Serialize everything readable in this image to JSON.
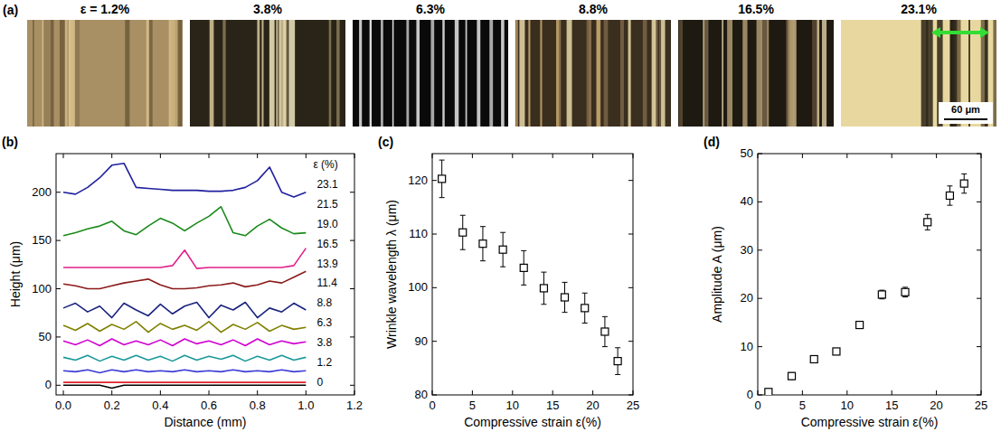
{
  "panel_a": {
    "panel": "(a)",
    "images": [
      {
        "label": "ε = 1.2%"
      },
      {
        "label": "3.8%"
      },
      {
        "label": "6.3%"
      },
      {
        "label": "8.8%"
      },
      {
        "label": "16.5%"
      },
      {
        "label": "23.1%"
      }
    ],
    "scale_bar": "60 μm"
  },
  "chart_data": [
    {
      "type": "line",
      "panel": "(b)",
      "xlabel": "Distance (mm)",
      "ylabel": "Height (μm)",
      "legend_title": "ε (%)",
      "legend": "right",
      "x": [
        0,
        0.05,
        0.1,
        0.15,
        0.2,
        0.25,
        0.3,
        0.35,
        0.4,
        0.45,
        0.5,
        0.55,
        0.6,
        0.65,
        0.7,
        0.75,
        0.8,
        0.85,
        0.9,
        0.95,
        1.0
      ],
      "xlim": [
        -0.03,
        1.2
      ],
      "xticks": [
        {
          "value": 0,
          "label": "0.0"
        },
        {
          "value": 0.2,
          "label": "0.2"
        },
        {
          "value": 0.4,
          "label": "0.4"
        },
        {
          "value": 0.6,
          "label": "0.6"
        },
        {
          "value": 0.8,
          "label": "0.8"
        },
        {
          "value": 1.0,
          "label": "1.0"
        },
        {
          "value": 1.2,
          "label": "1.2"
        }
      ],
      "ylim": [
        -10,
        240
      ],
      "yticks": [
        0,
        50,
        100,
        150,
        200
      ],
      "series": [
        {
          "name": "23.1",
          "color": "#1f1f9f",
          "values": [
            200,
            198,
            205,
            215,
            228,
            230,
            205,
            204,
            203,
            202,
            202,
            202,
            201,
            201,
            202,
            205,
            212,
            226,
            200,
            195,
            200
          ]
        },
        {
          "name": "21.5",
          "color": "#1a8a1a",
          "values": [
            155,
            158,
            162,
            165,
            170,
            160,
            156,
            165,
            173,
            168,
            160,
            168,
            175,
            185,
            158,
            155,
            165,
            172,
            163,
            157,
            158
          ]
        },
        {
          "name": "19.0",
          "color": "#e0208a",
          "values": [
            122,
            122,
            122,
            122,
            122,
            122,
            122,
            122,
            122,
            124,
            140,
            121,
            122,
            122,
            122,
            122,
            122,
            122,
            122,
            124,
            142
          ]
        },
        {
          "name": "16.5",
          "color": "#8b1a1a",
          "values": [
            105,
            103,
            100,
            100,
            103,
            106,
            108,
            110,
            104,
            100,
            100,
            101,
            103,
            104,
            106,
            102,
            104,
            108,
            106,
            112,
            118
          ]
        },
        {
          "name": "13.9",
          "color": "#1a237e",
          "values": [
            80,
            85,
            76,
            82,
            70,
            85,
            78,
            72,
            84,
            74,
            82,
            86,
            70,
            83,
            78,
            86,
            70,
            80,
            76,
            85,
            78
          ]
        },
        {
          "name": "11.4",
          "color": "#808000",
          "values": [
            62,
            57,
            64,
            56,
            63,
            58,
            66,
            55,
            64,
            58,
            62,
            57,
            66,
            55,
            63,
            58,
            65,
            56,
            62,
            58,
            60
          ]
        },
        {
          "name": "8.8",
          "color": "#d000d0",
          "values": [
            46,
            42,
            47,
            41,
            48,
            42,
            46,
            42,
            47,
            41,
            48,
            43,
            46,
            42,
            47,
            41,
            48,
            42,
            46,
            43,
            45
          ]
        },
        {
          "name": "6.3",
          "color": "#1a9999",
          "values": [
            29,
            26,
            31,
            25,
            30,
            26,
            31,
            26,
            30,
            25,
            31,
            26,
            30,
            27,
            31,
            25,
            30,
            26,
            31,
            26,
            29
          ]
        },
        {
          "name": "3.8",
          "color": "#3b3bd6",
          "values": [
            15,
            14,
            16,
            13,
            16,
            14,
            16,
            14,
            15,
            14,
            16,
            14,
            15,
            14,
            16,
            14,
            15,
            14,
            16,
            14,
            15
          ]
        },
        {
          "name": "1.2",
          "color": "#e0202a",
          "values": [
            3,
            3,
            3,
            3,
            3,
            3,
            3,
            3,
            3,
            3,
            3,
            3,
            3,
            3,
            3,
            3,
            3,
            3,
            3,
            3,
            3
          ]
        },
        {
          "name": "0",
          "color": "#000000",
          "values": [
            0,
            0,
            0,
            0,
            -3,
            0,
            0,
            0,
            0,
            0,
            0,
            0,
            0,
            0,
            0,
            0,
            0,
            0,
            0,
            0,
            0
          ]
        }
      ]
    },
    {
      "type": "scatter",
      "panel": "(c)",
      "xlabel": "Compressive strain ε(%)",
      "ylabel": "Wrinkle wavelength λ (μm)",
      "marker": "square",
      "color": "#000000",
      "x": [
        1.2,
        3.8,
        6.3,
        8.8,
        11.4,
        13.9,
        16.5,
        19.0,
        21.5,
        23.1
      ],
      "values": [
        120.3,
        110.3,
        108.2,
        107.1,
        103.7,
        99.9,
        98.2,
        96.2,
        91.8,
        86.3
      ],
      "errors": [
        3.5,
        3.2,
        3.2,
        3.2,
        3.2,
        3.0,
        2.8,
        2.8,
        2.8,
        2.5
      ],
      "xlim": [
        0,
        25
      ],
      "xticks": [
        0,
        5,
        10,
        15,
        20,
        25
      ],
      "ylim": [
        80,
        125
      ],
      "yticks": [
        80,
        90,
        100,
        110,
        120
      ]
    },
    {
      "type": "scatter",
      "panel": "(d)",
      "xlabel": "Compressive strain ε(%)",
      "ylabel": "Amplitude A (μm)",
      "marker": "square",
      "color": "#000000",
      "x": [
        1.2,
        3.8,
        6.3,
        8.8,
        11.4,
        13.9,
        16.5,
        19.0,
        21.5,
        23.1
      ],
      "values": [
        0.6,
        3.9,
        7.4,
        9.0,
        14.5,
        20.8,
        21.3,
        35.8,
        41.3,
        43.8
      ],
      "errors": [
        0.5,
        0.7,
        0.6,
        0.6,
        0.7,
        0.9,
        1.0,
        1.6,
        2.0,
        2.0
      ],
      "xlim": [
        0,
        25
      ],
      "xticks": [
        0,
        5,
        10,
        15,
        20,
        25
      ],
      "ylim": [
        0,
        50
      ],
      "yticks": [
        0,
        10,
        20,
        30,
        40,
        50
      ]
    }
  ]
}
